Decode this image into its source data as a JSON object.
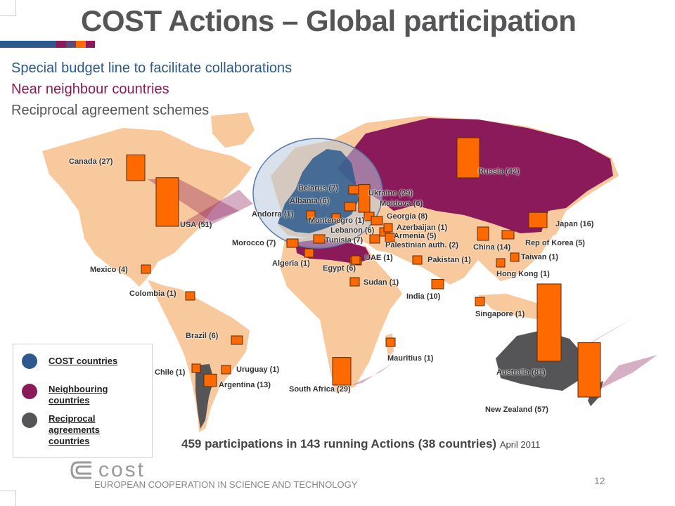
{
  "slide": {
    "title": "COST Actions – Global participation",
    "lines": [
      {
        "text": "Special budget line to facilitate collaborations",
        "color": "#2d5a8c"
      },
      {
        "text": "Near neighbour countries",
        "color": "#8b1a5a"
      },
      {
        "text": "Reciprocal agreement schemes",
        "color": "#555555"
      }
    ],
    "accent_colors": [
      "#2d5a8c",
      "#8b1a5a",
      "#5b4a7a",
      "#ff6a00",
      "#8b1a5a"
    ],
    "colors": {
      "map_land": "#f8c99c",
      "cost_region": "#2d5a8c",
      "neighbour_region": "#8b1a5a",
      "reciprocal_region": "#555558",
      "bar_fill": "#ff6a00"
    }
  },
  "legend": {
    "items": [
      {
        "label": "COST countries",
        "color": "#2d5a8c"
      },
      {
        "label": "Neighbouring countries",
        "color": "#8b1a5a"
      },
      {
        "label": "Reciprocal agreements countries",
        "color": "#555558"
      }
    ]
  },
  "summary": {
    "text": "459 participations in 143 running Actions (38 countries)",
    "date": "April 2011"
  },
  "footer": {
    "logo_name": "cost",
    "logo_tagline": "EUROPEAN COOPERATION IN SCIENCE AND TECHNOLOGY",
    "page_number": "12"
  },
  "chart_data": {
    "type": "bar",
    "categories": [
      "Canada",
      "USA",
      "Mexico",
      "Colombia",
      "Brazil",
      "Chile",
      "Uruguay",
      "Argentina",
      "Morocco",
      "Algeria",
      "Andorra",
      "Belarus",
      "Albania",
      "Ukraine",
      "Moldova",
      "Georgia",
      "Montenegro",
      "Lebanon",
      "Azerbaijan",
      "Armenia",
      "Tunisia",
      "Palestinian auth.",
      "Egypt",
      "UAE",
      "Sudan",
      "South Africa",
      "Mauritius",
      "Russia",
      "Pakistan",
      "India",
      "China",
      "Japan",
      "Rep of Korea",
      "Taiwan",
      "Hong Kong",
      "Singapore",
      "Australia",
      "New Zealand"
    ],
    "values": [
      27,
      51,
      4,
      1,
      6,
      1,
      1,
      13,
      7,
      1,
      1,
      7,
      6,
      29,
      6,
      8,
      1,
      6,
      1,
      5,
      7,
      2,
      6,
      1,
      1,
      29,
      1,
      42,
      1,
      10,
      14,
      16,
      5,
      1,
      1,
      1,
      81,
      57
    ],
    "labels": [
      "Canada (27)",
      "USA (51)",
      "Mexico (4)",
      "Colombia (1)",
      "Brazil (6)",
      "Chile (1)",
      "Uruguay (1)",
      "Argentina (13)",
      "Morocco (7)",
      "Algeria (1)",
      "Andorra (1)",
      "Belarus (7)",
      "Albania (6)",
      "Ukraine (29)",
      "Moldova (6)",
      "Georgia (8)",
      "Montenegro (1)",
      "Lebanon (6)",
      "Azerbaijan (1)",
      "Armenia (5)",
      "Tunisia (7)",
      "Palestinian auth. (2)",
      "Egypt (6)",
      "UAE (1)",
      "Sudan (1)",
      "South Africa (29)",
      "Mauritius (1)",
      "Russia (42)",
      "Pakistan (1)",
      "India (10)",
      "China (14)",
      "Japan (16)",
      "Rep of Korea (5)",
      "Taiwan (1)",
      "Hong Kong (1)",
      "Singapore (1)",
      "Australia (81)",
      "New Zealand (57)"
    ]
  }
}
